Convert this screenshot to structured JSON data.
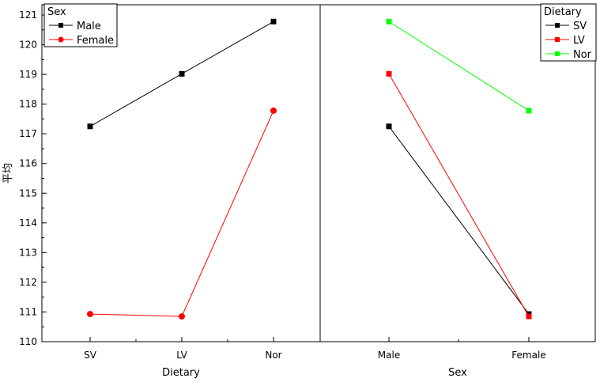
{
  "chart_data": [
    {
      "type": "line",
      "xlabel": "Dietary",
      "ylabel": "平均",
      "categories": [
        "SV",
        "LV",
        "Nor"
      ],
      "ylim": [
        110,
        121
      ],
      "yticks": [
        110,
        111,
        112,
        113,
        114,
        115,
        116,
        117,
        118,
        119,
        120,
        121
      ],
      "legend_title": "Sex",
      "legend_position": "top-left",
      "series": [
        {
          "name": "Male",
          "color": "#000000",
          "marker": "square",
          "values": [
            117.25,
            119.02,
            120.78
          ]
        },
        {
          "name": "Female",
          "color": "#ff0000",
          "marker": "circle",
          "values": [
            110.93,
            110.85,
            117.78
          ]
        }
      ]
    },
    {
      "type": "line",
      "xlabel": "Sex",
      "ylabel": "",
      "categories": [
        "Male",
        "Female"
      ],
      "ylim": [
        110,
        121
      ],
      "legend_title": "Dietary",
      "legend_position": "top-right",
      "series": [
        {
          "name": "SV",
          "color": "#000000",
          "marker": "square",
          "values": [
            117.25,
            110.93
          ]
        },
        {
          "name": "LV",
          "color": "#ff0000",
          "marker": "square",
          "values": [
            119.02,
            110.85
          ]
        },
        {
          "name": "Nor",
          "color": "#00ff00",
          "marker": "square",
          "values": [
            120.78,
            117.78
          ]
        }
      ]
    }
  ]
}
